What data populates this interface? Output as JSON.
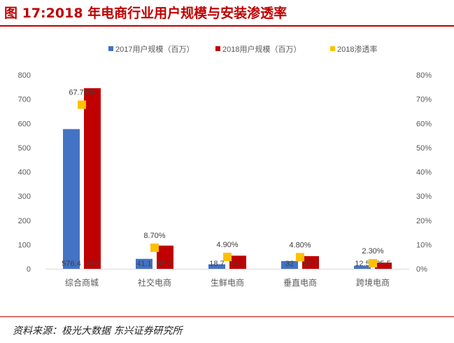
{
  "title": "图 17:2018 年电商行业用户规模与安装渗透率",
  "source": "资料来源：极光大数据 东兴证券研究所",
  "chart_data": {
    "type": "bar",
    "categories": [
      "综合商城",
      "社交电商",
      "生鲜电商",
      "垂直电商",
      "跨境电商"
    ],
    "series": [
      {
        "name": "2017用户规模（百万）",
        "type": "bar",
        "axis": "left",
        "color": "#4472c4",
        "values": [
          576.4,
          41.1,
          18.7,
          32,
          12.5
        ],
        "labels": [
          "576.4",
          "41.1",
          "18.7",
          "32",
          "12.5"
        ]
      },
      {
        "name": "2018用户规模（百万）",
        "type": "bar",
        "axis": "left",
        "color": "#c00000",
        "values": [
          745,
          95.7,
          54.1,
          52.3,
          25.5
        ],
        "labels": [
          "745",
          "95.7",
          "54.1",
          "52.3",
          "25.5"
        ]
      },
      {
        "name": "2018渗透率",
        "type": "scatter",
        "axis": "right",
        "color": "#ffc000",
        "values": [
          67.7,
          8.7,
          4.9,
          4.8,
          2.3
        ],
        "labels": [
          "67.70%",
          "8.70%",
          "4.90%",
          "4.80%",
          "2.30%"
        ]
      }
    ],
    "ylim": [
      0,
      800
    ],
    "yticks": [
      "0",
      "100",
      "200",
      "300",
      "400",
      "500",
      "600",
      "700",
      "800"
    ],
    "y2lim": [
      0,
      80
    ],
    "y2ticks": [
      "0%",
      "10%",
      "20%",
      "30%",
      "40%",
      "50%",
      "60%",
      "70%",
      "80%"
    ],
    "legend": "top",
    "grid": false
  }
}
